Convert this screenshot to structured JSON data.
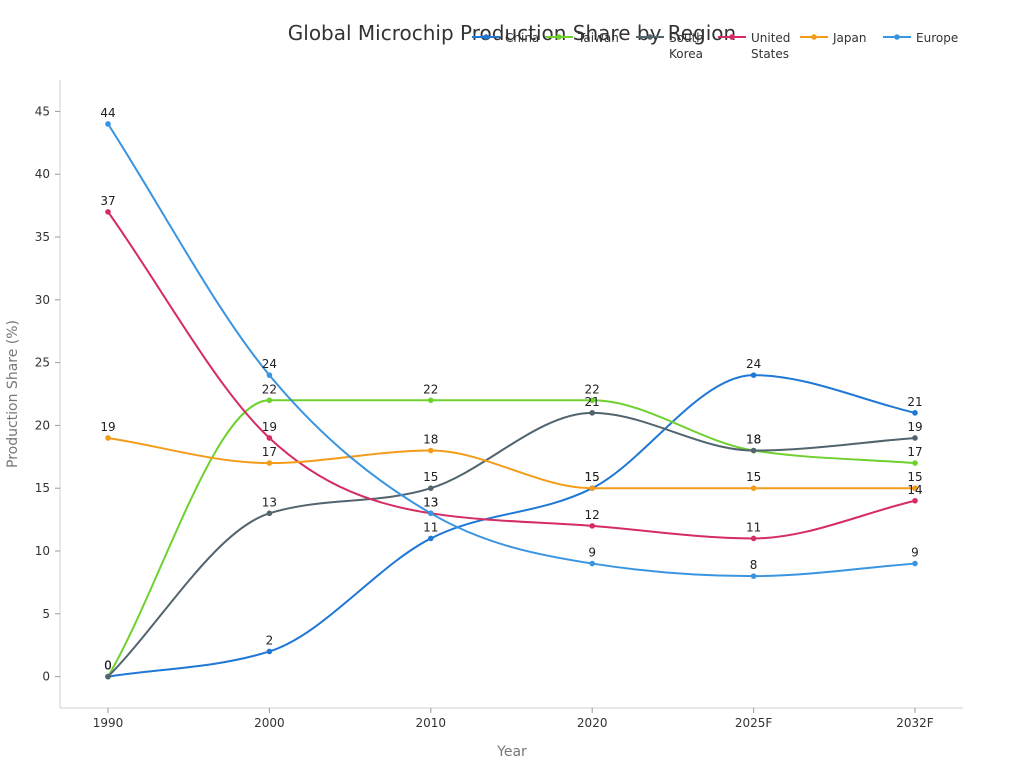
{
  "chart_data": {
    "type": "line",
    "title": "Global Microchip Production Share by Region",
    "xlabel": "Year",
    "ylabel": "Production Share (%)",
    "categories": [
      "1990",
      "2000",
      "2010",
      "2020",
      "2025F",
      "2032F"
    ],
    "ylim": [
      -2.5,
      47.5
    ],
    "yticks": [
      0,
      5,
      10,
      15,
      20,
      25,
      30,
      35,
      40,
      45
    ],
    "grid": false,
    "legend_position": "top-right",
    "series": [
      {
        "name": "China",
        "color": "#1f77d6",
        "values": [
          0,
          2,
          11,
          15,
          24,
          21
        ]
      },
      {
        "name": "Taiwan",
        "color": "#6fd12e",
        "values": [
          0,
          22,
          22,
          22,
          18,
          17
        ]
      },
      {
        "name": "South Korea",
        "legend_lines": [
          "South",
          "Korea"
        ],
        "color": "#52646e",
        "values": [
          0,
          13,
          15,
          21,
          18,
          19
        ]
      },
      {
        "name": "United States",
        "legend_lines": [
          "United",
          "States"
        ],
        "color": "#d42c63",
        "values": [
          37,
          19,
          13,
          12,
          11,
          14
        ]
      },
      {
        "name": "Japan",
        "color": "#f39c1a",
        "values": [
          19,
          17,
          18,
          15,
          15,
          15
        ]
      },
      {
        "name": "Europe",
        "color": "#3a95e0",
        "values": [
          44,
          24,
          13,
          9,
          8,
          9
        ]
      }
    ]
  }
}
